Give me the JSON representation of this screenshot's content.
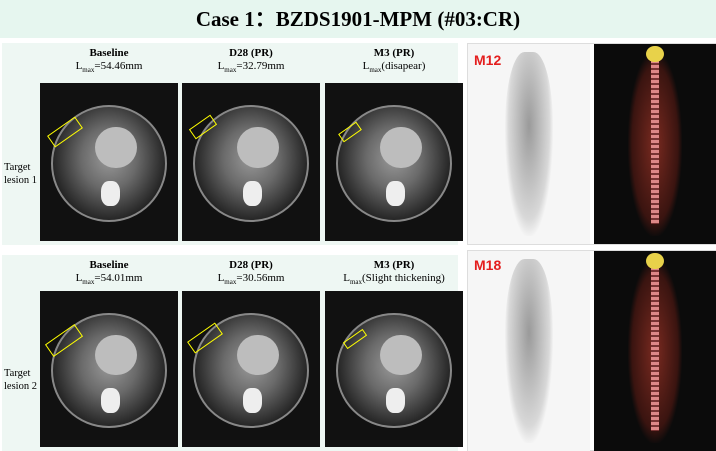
{
  "title": "Case 1：BZDS1901-MPM (#03:CR)",
  "rows": [
    {
      "lesion": "Target lesion 1",
      "cols": [
        {
          "label": "Baseline",
          "lmax_prefix": "L",
          "lmax_sub": "max",
          "lmax_value": "=54.46mm"
        },
        {
          "label": "D28 (PR)",
          "lmax_prefix": "L",
          "lmax_sub": "max",
          "lmax_value": "=32.79mm"
        },
        {
          "label": "M3 (PR)",
          "lmax_prefix": "L",
          "lmax_sub": "max",
          "lmax_value": "(disapear)"
        }
      ]
    },
    {
      "lesion": "Target lesion 2",
      "cols": [
        {
          "label": "Baseline",
          "lmax_prefix": "L",
          "lmax_sub": "max",
          "lmax_value": "=54.01mm"
        },
        {
          "label": "D28 (PR)",
          "lmax_prefix": "L",
          "lmax_sub": "max",
          "lmax_value": "=30.56mm"
        },
        {
          "label": "M3 (PR)",
          "lmax_prefix": "L",
          "lmax_sub": "max",
          "lmax_value": "(Slight thickening)"
        }
      ]
    }
  ],
  "pet": [
    {
      "label": "M12",
      "color": "#e41e1e"
    },
    {
      "label": "M18",
      "color": "#e41e1e"
    }
  ]
}
